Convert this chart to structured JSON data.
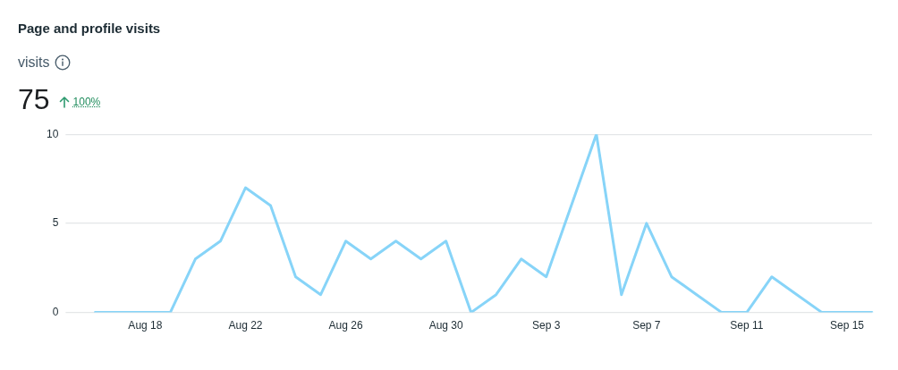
{
  "chart_data": {
    "type": "line",
    "title": "Page and profile visits",
    "subtitle": "visits",
    "annotations": [
      "75",
      "100%"
    ],
    "categories": [
      null,
      null,
      "Aug 18",
      null,
      null,
      null,
      "Aug 22",
      null,
      null,
      null,
      "Aug 26",
      null,
      null,
      null,
      "Aug 30",
      null,
      null,
      null,
      "Sep 3",
      null,
      null,
      null,
      "Sep 7",
      null,
      null,
      null,
      "Sep 11",
      null,
      null,
      null,
      "Sep 15",
      null
    ],
    "values": [
      0,
      0,
      0,
      0,
      3,
      4,
      7,
      6,
      2,
      1,
      4,
      3,
      4,
      3,
      4,
      0,
      1,
      3,
      2,
      6,
      10,
      1,
      5,
      2,
      1,
      0,
      0,
      2,
      1,
      0,
      0,
      0
    ],
    "color": "#87d4f8",
    "ylim": [
      0,
      10
    ],
    "yticks": [
      0,
      5,
      10
    ],
    "grid": "y"
  }
}
